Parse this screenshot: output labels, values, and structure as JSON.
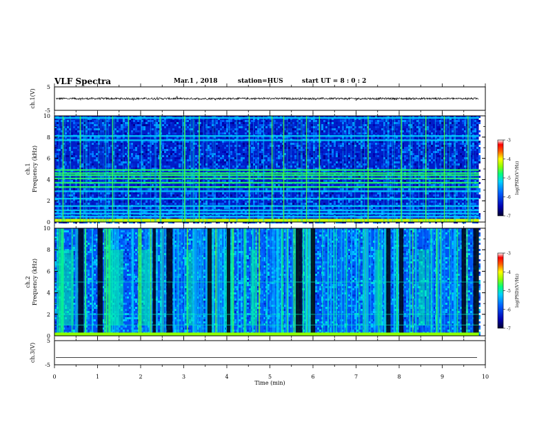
{
  "header": {
    "title": "VLF Spectra",
    "date": "Mar.1  , 2018",
    "station": "station=HUS",
    "start_ut": "start  UT  =   8  : 0   : 2"
  },
  "colors": {
    "spectrogram_background": "#00008a",
    "colormap": [
      "#000030",
      "#0000a0",
      "#0040ff",
      "#00c8ff",
      "#00ff80",
      "#80ff00",
      "#ffff00",
      "#ff8000",
      "#ff0000",
      "#ffffff"
    ]
  },
  "chart_data": [
    {
      "type": "line",
      "name": "ch.1 waveform",
      "ylabel": "ch.1(V)",
      "ylim": [
        -5,
        5
      ],
      "yticks": [
        "5",
        "-5"
      ],
      "xlim": [
        0,
        10
      ],
      "trace_level": 0,
      "trace_noise_amplitude": 0.4,
      "data_end_min": 9.85
    },
    {
      "type": "heatmap",
      "name": "ch.1 spectrogram",
      "ylabel": "ch.1\nFrequency (kHz)",
      "ylim": [
        0,
        10
      ],
      "yticks": [
        "0",
        "2",
        "4",
        "6",
        "8",
        "10"
      ],
      "xlim": [
        0,
        10
      ],
      "data_end_min": 9.85,
      "background_level": -6.3,
      "line_bands_khz": [
        0.5,
        0.8,
        1.1,
        1.5,
        2.2,
        2.9,
        3.3,
        3.7,
        4.1,
        4.4,
        4.6,
        4.9,
        7.7,
        8.1,
        9.8
      ],
      "impulsive_events_min": [
        0.2,
        0.6,
        1.35,
        1.72,
        2.45,
        3.02,
        3.36,
        4.52,
        5.05,
        5.32,
        5.85,
        6.15,
        7.28,
        8.05,
        8.62,
        9.05,
        9.6
      ],
      "colorbar": {
        "label": "log(PSD)(V²/Hz)",
        "range": [
          -7,
          -3
        ],
        "ticks": [
          "-3",
          "-4",
          "-5",
          "-6",
          "-7"
        ]
      }
    },
    {
      "type": "heatmap",
      "name": "ch.2 spectrogram",
      "ylabel": "ch.2\nFrequency (kHz)",
      "ylim": [
        0,
        10
      ],
      "yticks": [
        "0",
        "2",
        "4",
        "6",
        "8",
        "10"
      ],
      "xlim": [
        0,
        10
      ],
      "data_end_min": 9.85,
      "background_level": -5.9,
      "quiet_intervals_min": [
        [
          0.55,
          0.68
        ],
        [
          1.0,
          1.12
        ],
        [
          2.28,
          2.35
        ],
        [
          2.6,
          2.74
        ],
        [
          3.55,
          3.65
        ],
        [
          4.0,
          4.08
        ],
        [
          5.6,
          5.75
        ],
        [
          5.95,
          6.05
        ],
        [
          7.7,
          7.8
        ],
        [
          8.0,
          8.1
        ],
        [
          9.45,
          9.55
        ],
        [
          9.72,
          9.85
        ]
      ],
      "enhanced_intervals_min": [
        [
          0.1,
          0.45
        ],
        [
          1.3,
          1.6
        ],
        [
          2.0,
          2.2
        ],
        [
          3.05,
          3.2
        ],
        [
          3.95,
          4.15
        ],
        [
          4.55,
          4.7
        ],
        [
          7.45,
          7.6
        ],
        [
          8.45,
          8.6
        ],
        [
          8.62,
          8.7
        ]
      ],
      "colorbar": {
        "label": "log(PSD)(V²/Hz)",
        "range": [
          -7,
          -3
        ],
        "ticks": [
          "-3",
          "-4",
          "-5",
          "-6",
          "-7"
        ]
      }
    },
    {
      "type": "line",
      "name": "ch.3 waveform",
      "ylabel": "ch.3(V)",
      "ylim": [
        -5,
        5
      ],
      "yticks": [
        "5",
        "-5"
      ],
      "xlim": [
        0,
        10
      ],
      "trace_level": -2,
      "trace_noise_amplitude": 0.0
    }
  ],
  "xaxis": {
    "label": "Time (min)",
    "ticks": [
      "0",
      "1",
      "2",
      "3",
      "4",
      "5",
      "6",
      "7",
      "8",
      "9",
      "10"
    ]
  }
}
